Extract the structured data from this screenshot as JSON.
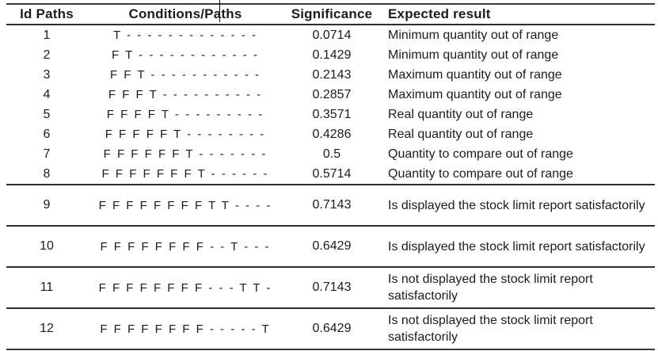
{
  "table": {
    "headers": [
      "Id Paths",
      "Conditions/Paths",
      "Significance",
      "Expected result"
    ],
    "rows": [
      {
        "id": "1",
        "conditions": "T - - - - - - - - - - - - -",
        "significance": "0.0714",
        "expected": "Minimum quantity out of range"
      },
      {
        "id": "2",
        "conditions": "F T - - - - - - - - - - - -",
        "significance": "0.1429",
        "expected": "Minimum quantity out of range"
      },
      {
        "id": "3",
        "conditions": "F F T - - - - - - - - - - -",
        "significance": "0.2143",
        "expected": "Maximum quantity out of range"
      },
      {
        "id": "4",
        "conditions": "F F F T - - - - - - - - - -",
        "significance": "0.2857",
        "expected": "Maximum quantity out of range"
      },
      {
        "id": "5",
        "conditions": "F F F F T - - - - - - - - -",
        "significance": "0.3571",
        "expected": "Real quantity out of range"
      },
      {
        "id": "6",
        "conditions": "F F F F F T - - - - - - - -",
        "significance": "0.4286",
        "expected": "Real quantity out of range"
      },
      {
        "id": "7",
        "conditions": "F F F F F F T - - - - - - -",
        "significance": "0.5",
        "expected": "Quantity to compare out of range"
      },
      {
        "id": "8",
        "conditions": "F F F F F F F T - - - - - -",
        "significance": "0.5714",
        "expected": "Quantity to compare out of range"
      },
      {
        "id": "9",
        "conditions": "F F F F F F F F T T - - - -",
        "significance": "0.7143",
        "expected": "Is displayed the stock limit report satisfactorily"
      },
      {
        "id": "10",
        "conditions": "F F F F F F F F - - T - - -",
        "significance": "0.6429",
        "expected": "Is displayed the stock limit report satisfactorily"
      },
      {
        "id": "11",
        "conditions": "F F F F F F F F - - - T T -",
        "significance": "0.7143",
        "expected": "Is not displayed the stock limit report satisfactorily"
      },
      {
        "id": "12",
        "conditions": "F F F F F F F F - - - - - T",
        "significance": "0.6429",
        "expected": "Is not displayed the stock limit report satisfactorily"
      }
    ]
  },
  "colors": {
    "text": "#1c1c1c",
    "line": "#2d2d2d",
    "background": "#ffffff"
  }
}
